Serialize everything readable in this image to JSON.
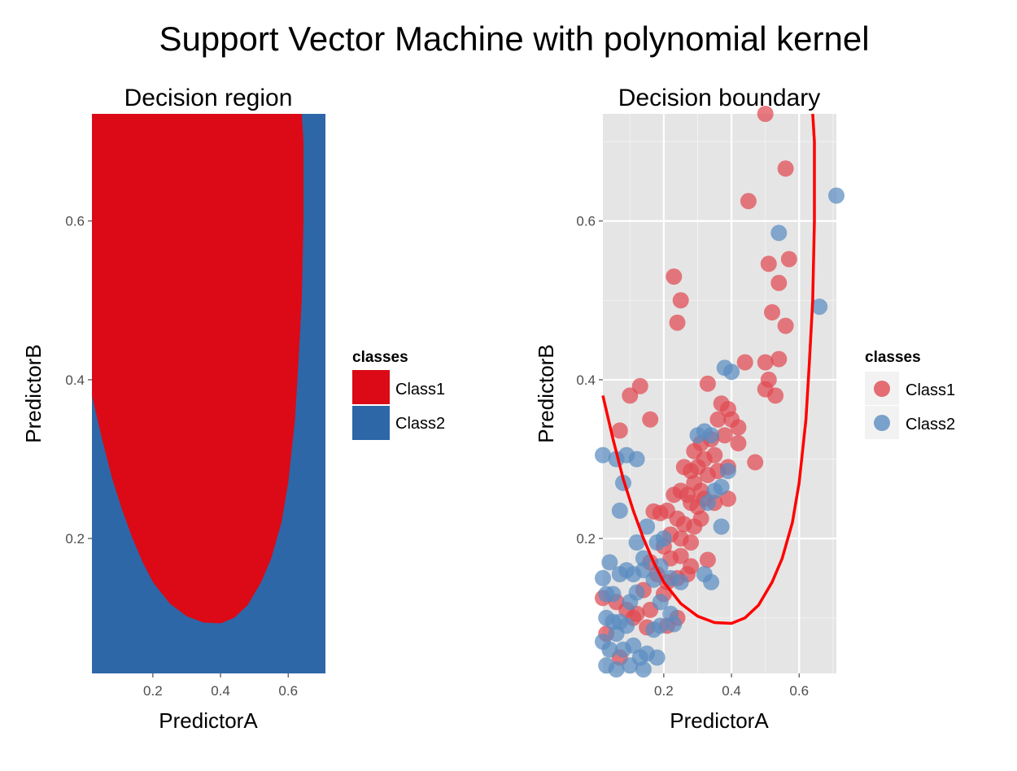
{
  "title": "Support Vector Machine with polynomial kernel",
  "colors": {
    "class1": "#db0a16",
    "class2": "#2d67a8",
    "point_class1": "#e04a52",
    "point_class2": "#5a8cc0",
    "panel_bg": "#e5e5e5",
    "gridline": "#ffffff",
    "boundary": "#ff0000"
  },
  "chart_data": [
    {
      "type": "heatmap",
      "title": "Decision region",
      "xlabel": "PredictorA",
      "ylabel": "PredictorB",
      "xlim": [
        0.02,
        0.71
      ],
      "ylim": [
        0.03,
        0.735
      ],
      "x_ticks": [
        {
          "value": 0.2,
          "label": "0.2"
        },
        {
          "value": 0.4,
          "label": "0.4"
        },
        {
          "value": 0.6,
          "label": "0.6"
        }
      ],
      "y_ticks": [
        {
          "value": 0.2,
          "label": "0.2"
        },
        {
          "value": 0.4,
          "label": "0.4"
        },
        {
          "value": 0.6,
          "label": "0.6"
        }
      ],
      "class1_region": [
        [
          0.02,
          0.38
        ],
        [
          0.05,
          0.325
        ],
        [
          0.08,
          0.275
        ],
        [
          0.11,
          0.235
        ],
        [
          0.14,
          0.2
        ],
        [
          0.17,
          0.17
        ],
        [
          0.2,
          0.145
        ],
        [
          0.25,
          0.118
        ],
        [
          0.3,
          0.102
        ],
        [
          0.35,
          0.094
        ],
        [
          0.4,
          0.093
        ],
        [
          0.44,
          0.1
        ],
        [
          0.48,
          0.116
        ],
        [
          0.52,
          0.145
        ],
        [
          0.55,
          0.175
        ],
        [
          0.58,
          0.22
        ],
        [
          0.6,
          0.27
        ],
        [
          0.62,
          0.35
        ],
        [
          0.63,
          0.42
        ],
        [
          0.64,
          0.5
        ],
        [
          0.645,
          0.6
        ],
        [
          0.645,
          0.7
        ],
        [
          0.64,
          0.735
        ],
        [
          0.02,
          0.735
        ]
      ],
      "legend": {
        "title": "classes",
        "position": "right",
        "entries": [
          "Class1",
          "Class2"
        ]
      }
    },
    {
      "type": "scatter",
      "title": "Decision boundary",
      "xlabel": "PredictorA",
      "ylabel": "PredictorB",
      "xlim": [
        0.02,
        0.71
      ],
      "ylim": [
        0.03,
        0.735
      ],
      "grid": true,
      "x_ticks": [
        {
          "value": 0.2,
          "label": "0.2"
        },
        {
          "value": 0.4,
          "label": "0.4"
        },
        {
          "value": 0.6,
          "label": "0.6"
        }
      ],
      "y_ticks": [
        {
          "value": 0.2,
          "label": "0.2"
        },
        {
          "value": 0.4,
          "label": "0.4"
        },
        {
          "value": 0.6,
          "label": "0.6"
        }
      ],
      "boundary": [
        [
          0.02,
          0.38
        ],
        [
          0.05,
          0.325
        ],
        [
          0.08,
          0.275
        ],
        [
          0.11,
          0.235
        ],
        [
          0.14,
          0.2
        ],
        [
          0.17,
          0.17
        ],
        [
          0.2,
          0.145
        ],
        [
          0.25,
          0.118
        ],
        [
          0.3,
          0.102
        ],
        [
          0.35,
          0.094
        ],
        [
          0.4,
          0.093
        ],
        [
          0.44,
          0.1
        ],
        [
          0.48,
          0.116
        ],
        [
          0.52,
          0.145
        ],
        [
          0.55,
          0.175
        ],
        [
          0.58,
          0.22
        ],
        [
          0.6,
          0.27
        ],
        [
          0.62,
          0.35
        ],
        [
          0.63,
          0.42
        ],
        [
          0.64,
          0.5
        ],
        [
          0.645,
          0.6
        ],
        [
          0.645,
          0.7
        ],
        [
          0.64,
          0.735
        ]
      ],
      "series": [
        {
          "name": "Class1",
          "points": [
            [
              0.5,
              0.735
            ],
            [
              0.56,
              0.666
            ],
            [
              0.45,
              0.625
            ],
            [
              0.51,
              0.546
            ],
            [
              0.57,
              0.552
            ],
            [
              0.54,
              0.522
            ],
            [
              0.23,
              0.53
            ],
            [
              0.25,
              0.5
            ],
            [
              0.24,
              0.472
            ],
            [
              0.52,
              0.485
            ],
            [
              0.56,
              0.468
            ],
            [
              0.44,
              0.422
            ],
            [
              0.5,
              0.422
            ],
            [
              0.54,
              0.426
            ],
            [
              0.51,
              0.4
            ],
            [
              0.5,
              0.388
            ],
            [
              0.53,
              0.38
            ],
            [
              0.33,
              0.395
            ],
            [
              0.1,
              0.38
            ],
            [
              0.13,
              0.392
            ],
            [
              0.07,
              0.336
            ],
            [
              0.16,
              0.35
            ],
            [
              0.37,
              0.37
            ],
            [
              0.39,
              0.363
            ],
            [
              0.36,
              0.35
            ],
            [
              0.4,
              0.35
            ],
            [
              0.42,
              0.34
            ],
            [
              0.38,
              0.33
            ],
            [
              0.34,
              0.325
            ],
            [
              0.31,
              0.32
            ],
            [
              0.29,
              0.31
            ],
            [
              0.32,
              0.3
            ],
            [
              0.35,
              0.305
            ],
            [
              0.3,
              0.29
            ],
            [
              0.28,
              0.285
            ],
            [
              0.26,
              0.29
            ],
            [
              0.33,
              0.28
            ],
            [
              0.36,
              0.285
            ],
            [
              0.39,
              0.29
            ],
            [
              0.42,
              0.32
            ],
            [
              0.47,
              0.296
            ],
            [
              0.29,
              0.27
            ],
            [
              0.31,
              0.26
            ],
            [
              0.27,
              0.255
            ],
            [
              0.25,
              0.26
            ],
            [
              0.23,
              0.255
            ],
            [
              0.28,
              0.245
            ],
            [
              0.3,
              0.24
            ],
            [
              0.32,
              0.25
            ],
            [
              0.35,
              0.245
            ],
            [
              0.39,
              0.25
            ],
            [
              0.21,
              0.235
            ],
            [
              0.19,
              0.232
            ],
            [
              0.17,
              0.234
            ],
            [
              0.24,
              0.225
            ],
            [
              0.26,
              0.218
            ],
            [
              0.29,
              0.215
            ],
            [
              0.31,
              0.225
            ],
            [
              0.22,
              0.205
            ],
            [
              0.25,
              0.2
            ],
            [
              0.28,
              0.195
            ],
            [
              0.2,
              0.19
            ],
            [
              0.16,
              0.17
            ],
            [
              0.22,
              0.175
            ],
            [
              0.25,
              0.178
            ],
            [
              0.28,
              0.165
            ],
            [
              0.33,
              0.173
            ],
            [
              0.18,
              0.155
            ],
            [
              0.21,
              0.145
            ],
            [
              0.24,
              0.15
            ],
            [
              0.27,
              0.155
            ],
            [
              0.14,
              0.135
            ],
            [
              0.2,
              0.13
            ],
            [
              0.06,
              0.12
            ],
            [
              0.09,
              0.11
            ],
            [
              0.12,
              0.105
            ],
            [
              0.16,
              0.11
            ],
            [
              0.02,
              0.125
            ],
            [
              0.03,
              0.08
            ],
            [
              0.07,
              0.05
            ],
            [
              0.11,
              0.1
            ],
            [
              0.21,
              0.09
            ],
            [
              0.15,
              0.088
            ],
            [
              0.24,
              0.1
            ]
          ]
        },
        {
          "name": "Class2",
          "points": [
            [
              0.71,
              0.632
            ],
            [
              0.54,
              0.585
            ],
            [
              0.66,
              0.492
            ],
            [
              0.38,
              0.415
            ],
            [
              0.4,
              0.41
            ],
            [
              0.32,
              0.335
            ],
            [
              0.34,
              0.33
            ],
            [
              0.3,
              0.33
            ],
            [
              0.02,
              0.305
            ],
            [
              0.06,
              0.3
            ],
            [
              0.09,
              0.305
            ],
            [
              0.12,
              0.3
            ],
            [
              0.08,
              0.27
            ],
            [
              0.39,
              0.285
            ],
            [
              0.37,
              0.265
            ],
            [
              0.35,
              0.26
            ],
            [
              0.33,
              0.245
            ],
            [
              0.07,
              0.235
            ],
            [
              0.37,
              0.215
            ],
            [
              0.15,
              0.215
            ],
            [
              0.18,
              0.195
            ],
            [
              0.12,
              0.195
            ],
            [
              0.2,
              0.2
            ],
            [
              0.14,
              0.175
            ],
            [
              0.19,
              0.165
            ],
            [
              0.09,
              0.16
            ],
            [
              0.04,
              0.17
            ],
            [
              0.02,
              0.15
            ],
            [
              0.03,
              0.13
            ],
            [
              0.05,
              0.13
            ],
            [
              0.07,
              0.155
            ],
            [
              0.11,
              0.155
            ],
            [
              0.14,
              0.16
            ],
            [
              0.17,
              0.148
            ],
            [
              0.22,
              0.15
            ],
            [
              0.25,
              0.145
            ],
            [
              0.32,
              0.155
            ],
            [
              0.34,
              0.145
            ],
            [
              0.19,
              0.12
            ],
            [
              0.1,
              0.12
            ],
            [
              0.12,
              0.132
            ],
            [
              0.03,
              0.1
            ],
            [
              0.05,
              0.095
            ],
            [
              0.07,
              0.095
            ],
            [
              0.09,
              0.09
            ],
            [
              0.06,
              0.08
            ],
            [
              0.02,
              0.07
            ],
            [
              0.04,
              0.06
            ],
            [
              0.08,
              0.06
            ],
            [
              0.11,
              0.065
            ],
            [
              0.15,
              0.055
            ],
            [
              0.18,
              0.05
            ],
            [
              0.13,
              0.05
            ],
            [
              0.03,
              0.04
            ],
            [
              0.06,
              0.035
            ],
            [
              0.1,
              0.04
            ],
            [
              0.14,
              0.035
            ],
            [
              0.19,
              0.09
            ],
            [
              0.17,
              0.085
            ],
            [
              0.22,
              0.105
            ],
            [
              0.23,
              0.092
            ]
          ]
        }
      ],
      "legend": {
        "title": "classes",
        "position": "right",
        "entries": [
          "Class1",
          "Class2"
        ]
      }
    }
  ]
}
